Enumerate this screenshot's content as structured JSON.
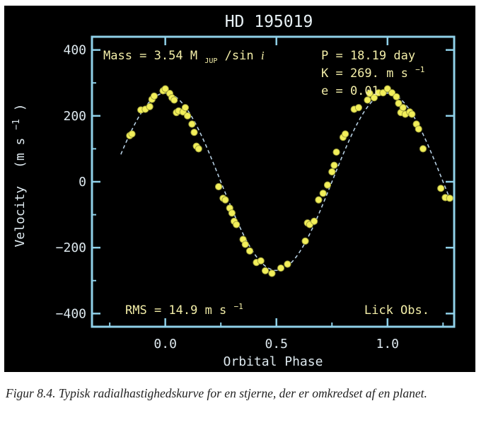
{
  "chart_data": {
    "type": "scatter",
    "title": "HD 195019",
    "xlabel": "Orbital Phase",
    "ylabel_main": "Velocity",
    "ylabel_unit_base": "(m s",
    "ylabel_unit_sup": "−1",
    "ylabel_unit_close": ")",
    "xlim": [
      -0.33,
      1.3
    ],
    "ylim": [
      -440,
      440
    ],
    "x_ticks": [
      0.0,
      0.5,
      1.0
    ],
    "x_tick_labels": [
      "0.0",
      "0.5",
      "1.0"
    ],
    "y_ticks": [
      400,
      200,
      0,
      -200,
      -400
    ],
    "y_tick_labels": [
      "400",
      "200",
      "0",
      "−200",
      "−400"
    ],
    "grid": false,
    "fit_curve": {
      "K": 269,
      "phase_range": [
        -0.2,
        1.28
      ]
    },
    "series": [
      {
        "points": [
          [
            -0.16,
            140
          ],
          [
            -0.15,
            145
          ],
          [
            -0.11,
            218
          ],
          [
            -0.09,
            220
          ],
          [
            -0.07,
            228
          ],
          [
            -0.06,
            250
          ],
          [
            -0.05,
            260
          ],
          [
            -0.01,
            276
          ],
          [
            0.0,
            282
          ],
          [
            0.02,
            268
          ],
          [
            0.03,
            255
          ],
          [
            0.04,
            248
          ],
          [
            0.05,
            210
          ],
          [
            0.06,
            215
          ],
          [
            0.08,
            212
          ],
          [
            0.09,
            225
          ],
          [
            0.1,
            200
          ],
          [
            0.12,
            175
          ],
          [
            0.13,
            150
          ],
          [
            0.14,
            108
          ],
          [
            0.15,
            100
          ],
          [
            0.24,
            -15
          ],
          [
            0.26,
            -50
          ],
          [
            0.27,
            -55
          ],
          [
            0.29,
            -80
          ],
          [
            0.3,
            -95
          ],
          [
            0.31,
            -120
          ],
          [
            0.32,
            -130
          ],
          [
            0.35,
            -175
          ],
          [
            0.36,
            -190
          ],
          [
            0.38,
            -210
          ],
          [
            0.41,
            -245
          ],
          [
            0.43,
            -240
          ],
          [
            0.45,
            -270
          ],
          [
            0.48,
            -278
          ],
          [
            0.52,
            -262
          ],
          [
            0.55,
            -250
          ],
          [
            0.63,
            -180
          ],
          [
            0.64,
            -125
          ],
          [
            0.65,
            -130
          ],
          [
            0.67,
            -120
          ],
          [
            0.69,
            -55
          ],
          [
            0.71,
            -35
          ],
          [
            0.73,
            -10
          ],
          [
            0.75,
            30
          ],
          [
            0.76,
            50
          ],
          [
            0.77,
            90
          ],
          [
            0.8,
            135
          ],
          [
            0.81,
            145
          ],
          [
            0.85,
            220
          ],
          [
            0.87,
            225
          ],
          [
            0.91,
            248
          ],
          [
            0.92,
            268
          ],
          [
            0.94,
            255
          ],
          [
            0.96,
            270
          ],
          [
            0.98,
            270
          ],
          [
            1.0,
            282
          ],
          [
            1.02,
            270
          ],
          [
            1.04,
            258
          ],
          [
            1.05,
            238
          ],
          [
            1.06,
            210
          ],
          [
            1.07,
            225
          ],
          [
            1.08,
            205
          ],
          [
            1.1,
            212
          ],
          [
            1.11,
            205
          ],
          [
            1.13,
            175
          ],
          [
            1.14,
            160
          ],
          [
            1.16,
            100
          ],
          [
            1.24,
            -20
          ],
          [
            1.26,
            -48
          ],
          [
            1.28,
            -50
          ]
        ]
      }
    ],
    "colors": {
      "background": "#000000",
      "frame": "#8fd0e8",
      "point": "#f2ef5a",
      "point_edge": "#9f9f3a",
      "curve": "#b4cde0",
      "annotation": "#f3eea8"
    }
  },
  "annotations": {
    "mass_prefix": "Mass = 3.54 M",
    "mass_sub": "JUP",
    "mass_suffix": " /sin ",
    "mass_italic": "i",
    "period": "P = 18.19 day",
    "k_base": "K = 269. m s",
    "k_sup": "−1",
    "ecc": "e = 0.01",
    "rms_base": "RMS = 14.9 m s",
    "rms_sup": "−1",
    "observatory": "Lick Obs."
  },
  "caption": "Figur 8.4. Typisk radialhastighedskurve for en stjerne, der er omkredset af en planet."
}
